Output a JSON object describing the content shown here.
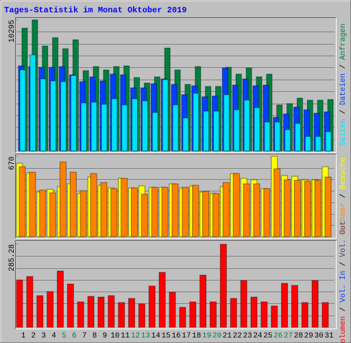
{
  "chart_data": {
    "type": "bar",
    "title": "Tages-Statistik im Monat Oktober 2019",
    "separator": " / ",
    "categories": [
      "1",
      "2",
      "3",
      "4",
      "5",
      "6",
      "7",
      "8",
      "9",
      "10",
      "11",
      "12",
      "13",
      "14",
      "15",
      "16",
      "17",
      "18",
      "19",
      "20",
      "21",
      "22",
      "23",
      "24",
      "25",
      "26",
      "27",
      "28",
      "29",
      "30",
      "31"
    ],
    "category_colors": [
      "#000000",
      "#000000",
      "#000000",
      "#000000",
      "#008040",
      "#008040",
      "#000000",
      "#000000",
      "#000000",
      "#000000",
      "#000000",
      "#008040",
      "#008040",
      "#000000",
      "#000000",
      "#000000",
      "#000000",
      "#000000",
      "#008040",
      "#008040",
      "#000000",
      "#000000",
      "#000000",
      "#000000",
      "#000000",
      "#008040",
      "#008040",
      "#000000",
      "#000000",
      "#000000",
      "#000000"
    ],
    "panels": [
      {
        "ylim": [
          0,
          10295
        ],
        "yticks": [
          10295
        ],
        "series": [
          {
            "name": "Anfragen",
            "color": "#008040",
            "values": [
              9648,
              10295,
              8247,
              8894,
              8031,
              8732,
              6306,
              6630,
              6360,
              6630,
              6684,
              5767,
              5336,
              5821,
              8085,
              6360,
              5228,
              6630,
              5067,
              5067,
              6576,
              6037,
              6522,
              5821,
              6037,
              3611,
              3719,
              4150,
              3989,
              3989,
              4043
            ]
          },
          {
            "name": "Dateien",
            "color": "#0040ff",
            "values": [
              6684,
              6630,
              6576,
              6576,
              6630,
              5983,
              5444,
              5821,
              5498,
              6037,
              5983,
              4959,
              4959,
              5282,
              5660,
              5228,
              4420,
              5121,
              4258,
              4312,
              6522,
              5175,
              5660,
              5121,
              5175,
              2641,
              2911,
              3450,
              3234,
              2965,
              3072
            ]
          },
          {
            "name": "Seiten",
            "color": "#00e0ff",
            "values": [
              6360,
              7546,
              5660,
              5498,
              5444,
              5929,
              3773,
              3827,
              3665,
              4096,
              3611,
              4096,
              3935,
              3018,
              5606,
              3611,
              2587,
              4528,
              3126,
              3126,
              4420,
              3234,
              3989,
              3396,
              2264,
              2264,
              1671,
              2156,
              1132,
              1132,
              1509
            ]
          }
        ]
      },
      {
        "ylim": [
          0,
          670
        ],
        "yticks": [
          670
        ],
        "series": [
          {
            "name": "Besuche",
            "color": "#ffff00",
            "values": [
              613,
              533,
              372,
              395,
              418,
              441,
              361,
              498,
              429,
              407,
              487,
              407,
              424,
              412,
              412,
              441,
              407,
              424,
              372,
              361,
              418,
              527,
              487,
              475,
              401,
              670,
              510,
              504,
              475,
              475,
              584
            ]
          },
          {
            "name": "Rechner",
            "color": "#ff8000",
            "values": [
              584,
              538,
              389,
              366,
              624,
              538,
              384,
              527,
              452,
              401,
              487,
              407,
              355,
              412,
              412,
              441,
              412,
              429,
              378,
              361,
              452,
              527,
              441,
              441,
              401,
              567,
              475,
              470,
              464,
              470,
              498
            ]
          }
        ]
      },
      {
        "ylim": [
          0,
          285.28
        ],
        "yticks": [
          285.28
        ],
        "series": [
          {
            "name": "Volumen",
            "color": "#ff0000",
            "values": [
              162.7,
              174.5,
              108.5,
              122.6,
              193.3,
              148.5,
              87.2,
              106.1,
              103.7,
              108.5,
              84.9,
              99.0,
              80.2,
              141.5,
              188.6,
              120.2,
              68.4,
              87.2,
              179.2,
              87.2,
              285.28,
              99.0,
              160.3,
              103.7,
              87.2,
              73.1,
              150.9,
              143.8,
              84.9,
              160.3,
              84.9
            ]
          }
        ],
        "extra_legend": [
          {
            "name": "Vol. In",
            "color": "#0040ff"
          },
          {
            "name": "Vol. Out",
            "color": "#404080"
          }
        ]
      }
    ]
  }
}
